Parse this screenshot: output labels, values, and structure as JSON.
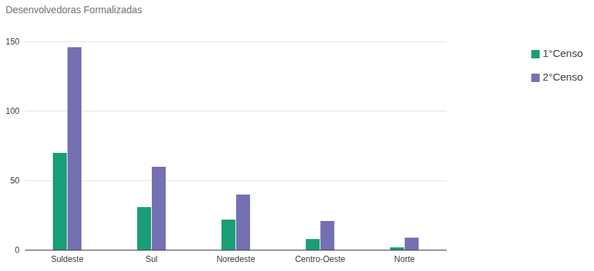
{
  "chart_data": {
    "type": "bar",
    "title": "Desenvolvedoras Formalizadas",
    "categories": [
      "Suldeste",
      "Sul",
      "Noredeste",
      "Centro-Oeste",
      "Norte"
    ],
    "series": [
      {
        "name": "1°Censo",
        "color": "#1b9e77",
        "values": [
          70,
          31,
          22,
          8,
          2
        ]
      },
      {
        "name": "2°Censo",
        "color": "#7570b3",
        "values": [
          146,
          60,
          40,
          21,
          9
        ]
      }
    ],
    "ylim": [
      0,
      150
    ],
    "yticks": [
      0,
      50,
      100,
      150
    ],
    "grid": true,
    "legend": "right"
  }
}
